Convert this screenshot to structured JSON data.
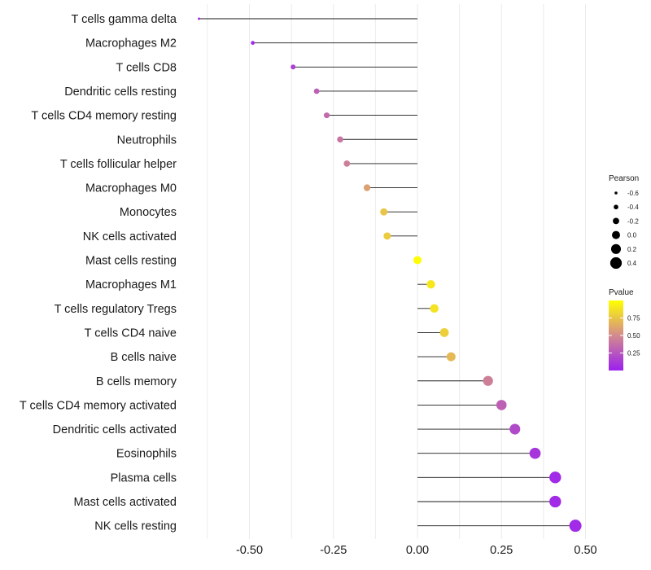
{
  "chart_data": {
    "type": "lollipop",
    "title": "",
    "xlabel": "",
    "ylabel": "",
    "xlim": [
      -0.7,
      0.55
    ],
    "xticks": [
      -0.5,
      -0.25,
      0.0,
      0.25,
      0.5
    ],
    "xtick_labels": [
      "-0.50",
      "-0.25",
      "0.00",
      "0.25",
      "0.50"
    ],
    "grid": true,
    "categories": [
      "T cells gamma delta",
      "Macrophages M2",
      "T cells CD8",
      "Dendritic cells resting",
      "T cells CD4 memory resting",
      "Neutrophils",
      "T cells follicular helper",
      "Macrophages M0",
      "Monocytes",
      "NK cells activated",
      "Mast cells resting",
      "Macrophages M1",
      "T cells regulatory  Tregs ",
      "T cells CD4 naive",
      "B cells naive",
      "B cells memory",
      "T cells CD4 memory activated",
      "Dendritic cells activated",
      "Eosinophils",
      "Plasma cells",
      "Mast cells activated",
      "NK cells resting"
    ],
    "pearson": [
      -0.65,
      -0.49,
      -0.37,
      -0.3,
      -0.27,
      -0.23,
      -0.21,
      -0.15,
      -0.1,
      -0.09,
      0.0,
      0.04,
      0.05,
      0.08,
      0.1,
      0.21,
      0.25,
      0.29,
      0.35,
      0.41,
      0.41,
      0.47
    ],
    "pvalue": [
      0.05,
      0.05,
      0.15,
      0.3,
      0.35,
      0.4,
      0.45,
      0.6,
      0.75,
      0.78,
      0.99,
      0.9,
      0.88,
      0.8,
      0.7,
      0.45,
      0.3,
      0.2,
      0.1,
      0.05,
      0.05,
      0.05
    ],
    "legend": {
      "size_title": "Pearson",
      "size_labels": [
        "-0.6",
        "-0.4",
        "-0.2",
        "0.0",
        "0.2",
        "0.4"
      ],
      "size_values": [
        -0.6,
        -0.4,
        -0.2,
        0.0,
        0.2,
        0.4
      ],
      "color_title": "Pvalue",
      "color_labels": [
        "0.75",
        "0.50",
        "0.25"
      ],
      "color_values": [
        0.75,
        0.5,
        0.25
      ],
      "color_range": [
        0.0,
        1.0
      ],
      "color_low": "#9b20f0",
      "color_mid": "#d38a8e",
      "color_high": "#ffff00"
    }
  }
}
